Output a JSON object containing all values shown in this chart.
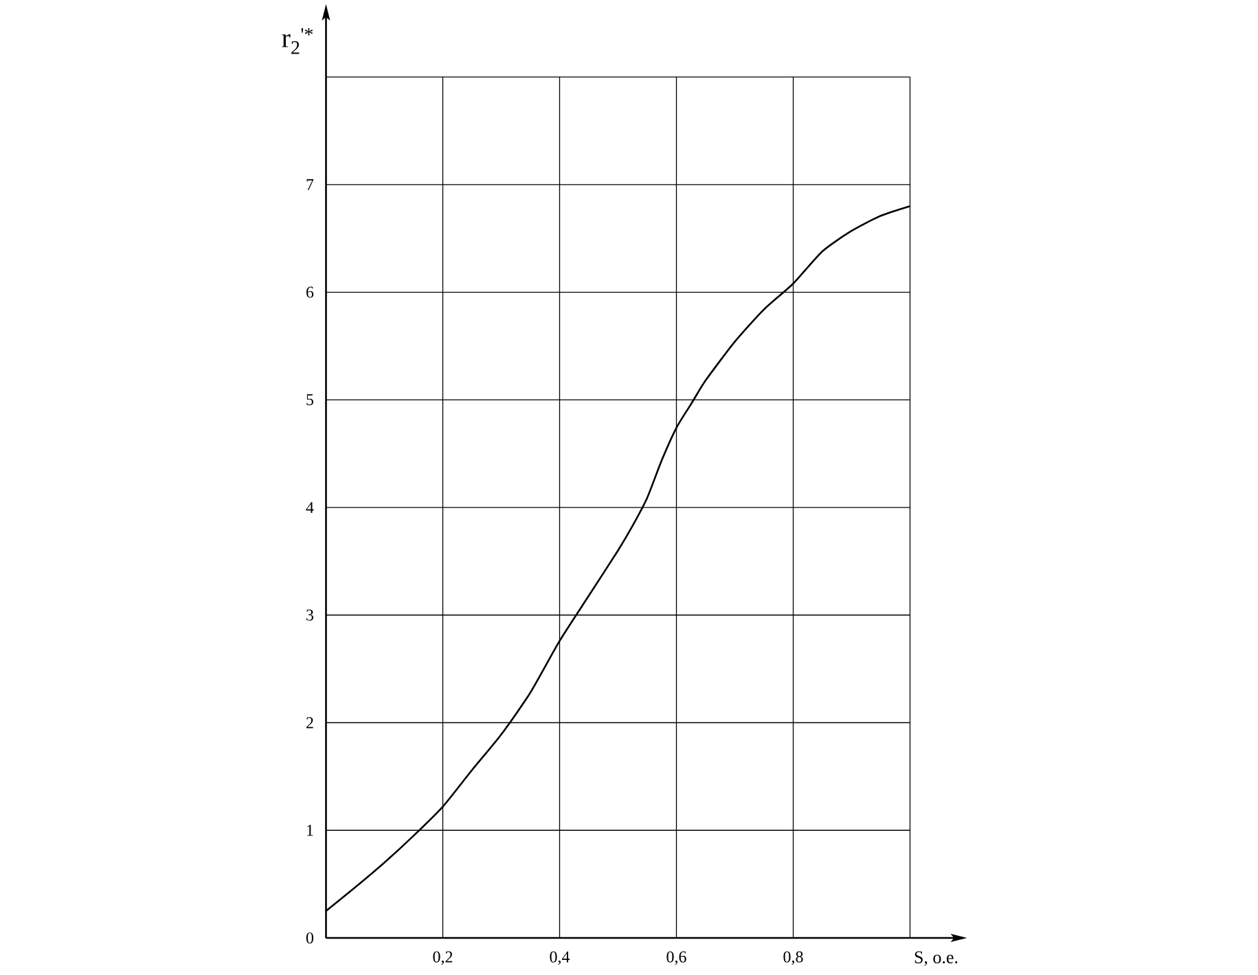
{
  "chart_data": {
    "type": "line",
    "xlabel": "S, о.е.",
    "ylabel": "r$_{2}$$^{'*}$",
    "x": [
      0,
      0.05,
      0.1,
      0.15,
      0.2,
      0.25,
      0.3,
      0.35,
      0.4,
      0.45,
      0.5,
      0.525,
      0.55,
      0.575,
      0.6,
      0.625,
      0.65,
      0.7,
      0.75,
      0.8,
      0.85,
      0.9,
      0.95,
      1.0
    ],
    "series": [
      {
        "color": "#000000",
        "values": [
          0.25,
          0.47,
          0.7,
          0.95,
          1.22,
          1.56,
          1.89,
          2.28,
          2.76,
          3.18,
          3.6,
          3.83,
          4.09,
          4.44,
          4.74,
          4.96,
          5.18,
          5.54,
          5.84,
          6.08,
          6.38,
          6.57,
          6.71,
          6.8
        ]
      }
    ],
    "xlim": [
      0,
      1
    ],
    "ylim": [
      0,
      8
    ],
    "xticks": [
      {
        "value": 0.2,
        "label": "0,2"
      },
      {
        "value": 0.4,
        "label": "0,4"
      },
      {
        "value": 0.6,
        "label": "0,6"
      },
      {
        "value": 0.8,
        "label": "0,8"
      },
      {
        "value": 1.0,
        "label": null
      }
    ],
    "yticks": [
      0,
      1,
      2,
      3,
      4,
      5,
      6,
      7,
      {
        "value": 8,
        "label": null
      }
    ],
    "grid": true,
    "marker": "none",
    "line_style": "solid"
  }
}
